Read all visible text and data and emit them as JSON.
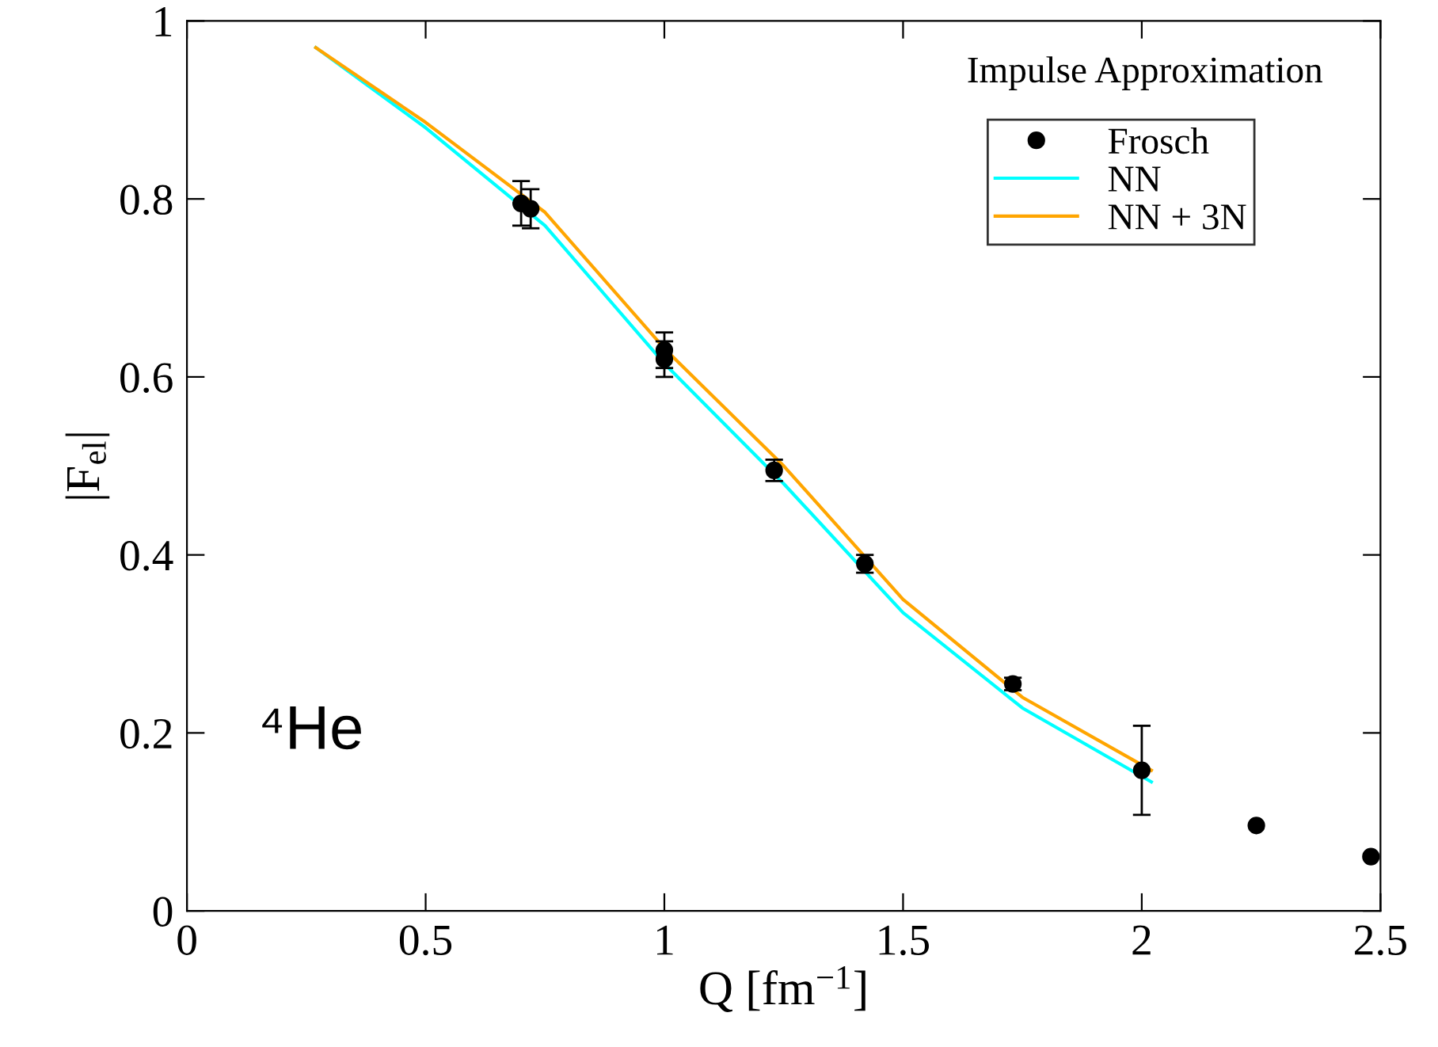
{
  "chart_data": {
    "type": "line",
    "xlabel": "Q [fm$^{−1}$]",
    "ylabel": "|F$_{el}$|",
    "legend_title": "Impulse Approximation",
    "annotations": [
      "⁴He"
    ],
    "xlim": [
      0,
      2.5
    ],
    "xticks": [
      0,
      0.5,
      1,
      1.5,
      2,
      2.5
    ],
    "ylim": [
      0,
      1
    ],
    "yticks": [
      0,
      0.2,
      0.4,
      0.6,
      0.8,
      1
    ],
    "grid": false,
    "legend": "top right",
    "series": [
      {
        "name": "Frosch",
        "type": "scatter",
        "marker": "circle",
        "color": "#000000",
        "x": [
          0.7,
          0.72,
          1.0,
          1.0,
          1.23,
          1.42,
          1.73,
          2.0,
          2.24,
          2.48
        ],
        "values": [
          0.795,
          0.789,
          0.63,
          0.62,
          0.495,
          0.39,
          0.255,
          0.158,
          0.096,
          0.061
        ],
        "errors": [
          0.025,
          0.022,
          0.02,
          0.02,
          0.012,
          0.01,
          0.007,
          0.05,
          null,
          null
        ]
      },
      {
        "name": "NN",
        "color": "#00ffff",
        "x": [
          0.27,
          0.5,
          0.75,
          1.0,
          1.25,
          1.5,
          1.75,
          2.02
        ],
        "values": [
          0.97,
          0.88,
          0.77,
          0.615,
          0.48,
          0.335,
          0.228,
          0.145
        ]
      },
      {
        "name": "NN + 3N",
        "color": "#ffa500",
        "x": [
          0.27,
          0.5,
          0.75,
          1.0,
          1.25,
          1.5,
          1.75,
          2.02
        ],
        "values": [
          0.97,
          0.886,
          0.785,
          0.632,
          0.5,
          0.35,
          0.24,
          0.158
        ]
      }
    ]
  }
}
